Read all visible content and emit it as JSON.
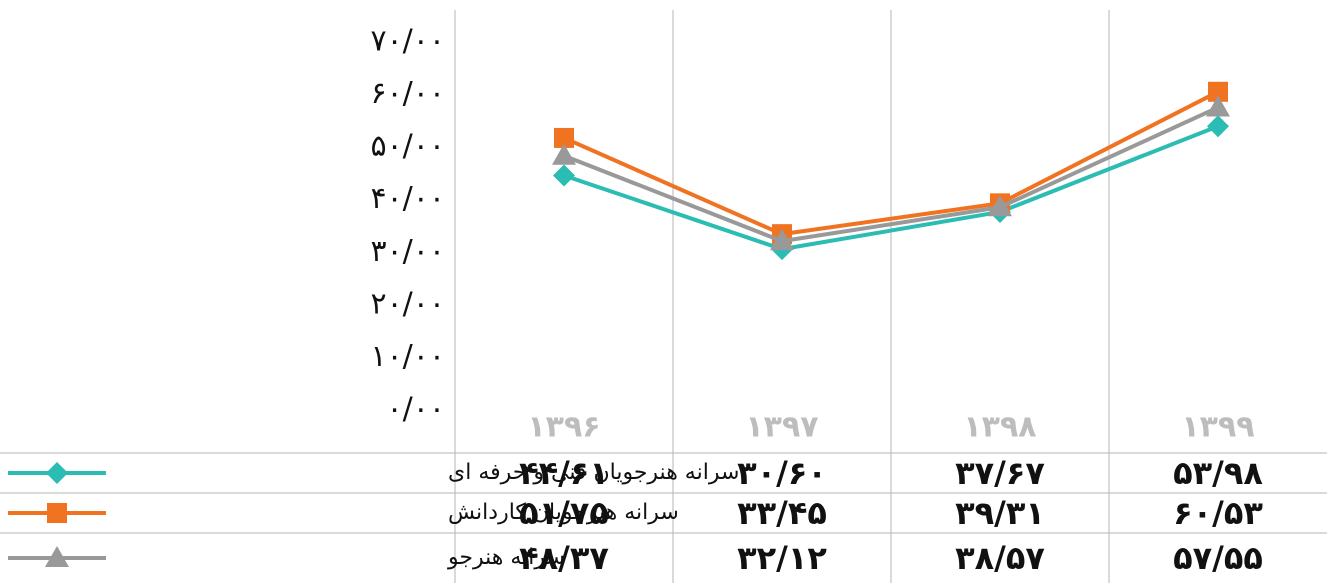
{
  "chart_data": {
    "type": "line",
    "categories": [
      "۱۳۹۶",
      "۱۳۹۷",
      "۱۳۹۸",
      "۱۳۹۹"
    ],
    "series": [
      {
        "name": "سرانه هنرجویان فنی و حرفه ای",
        "color": "#2bbcb4",
        "marker": "diamond",
        "values": [
          44.61,
          30.6,
          37.67,
          53.98
        ],
        "value_labels": [
          "۴۴/۶۱",
          "۳۰/۶۰",
          "۳۷/۶۷",
          "۵۳/۹۸"
        ]
      },
      {
        "name": "سرانه هنرجویان کاردانش",
        "color": "#f07322",
        "marker": "square",
        "values": [
          51.75,
          33.45,
          39.31,
          60.53
        ],
        "value_labels": [
          "۵۱/۷۵",
          "۳۳/۴۵",
          "۳۹/۳۱",
          "۶۰/۵۳"
        ]
      },
      {
        "name": "سرانه هنرجو",
        "color": "#999999",
        "marker": "triangle",
        "values": [
          48.37,
          32.12,
          38.57,
          57.55
        ],
        "value_labels": [
          "۴۸/۳۷",
          "۳۲/۱۲",
          "۳۸/۵۷",
          "۵۷/۵۵"
        ]
      }
    ],
    "ylim": [
      0,
      70
    ],
    "yticks": [
      {
        "value": 0,
        "label": "۰/۰۰"
      },
      {
        "value": 10,
        "label": "۱۰/۰۰"
      },
      {
        "value": 20,
        "label": "۲۰/۰۰"
      },
      {
        "value": 30,
        "label": "۳۰/۰۰"
      },
      {
        "value": 40,
        "label": "۴۰/۰۰"
      },
      {
        "value": 50,
        "label": "۵۰/۰۰"
      },
      {
        "value": 60,
        "label": "۶۰/۰۰"
      },
      {
        "value": 70,
        "label": "۷۰/۰۰"
      }
    ]
  }
}
